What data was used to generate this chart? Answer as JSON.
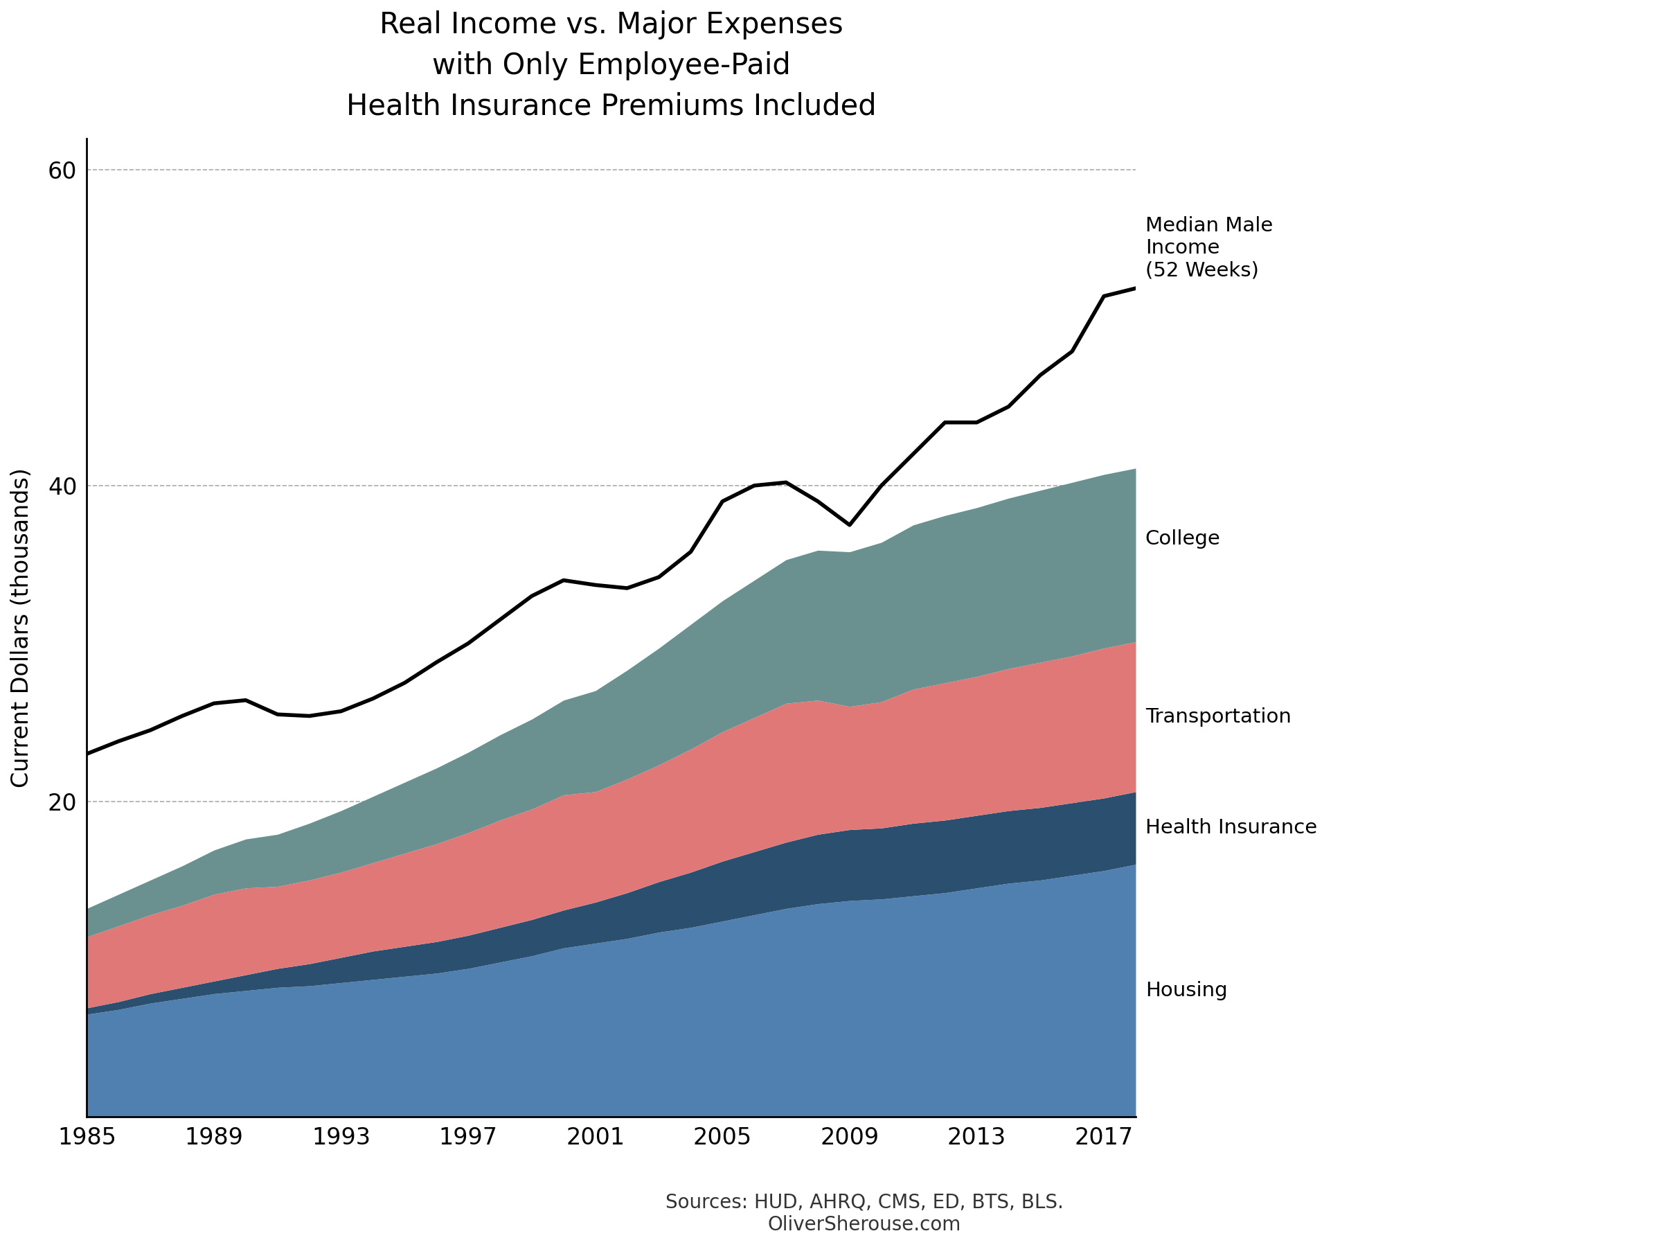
{
  "title": "Real Income vs. Major Expenses\nwith Only Employee-Paid\nHealth Insurance Premiums Included",
  "ylabel": "Current Dollars (thousands)",
  "sources_text": "Sources: HUD, AHRQ, CMS, ED, BTS, BLS.\nOliverSherouse.com",
  "years": [
    1985,
    1986,
    1987,
    1988,
    1989,
    1990,
    1991,
    1992,
    1993,
    1994,
    1995,
    1996,
    1997,
    1998,
    1999,
    2000,
    2001,
    2002,
    2003,
    2004,
    2005,
    2006,
    2007,
    2008,
    2009,
    2010,
    2011,
    2012,
    2013,
    2014,
    2015,
    2016,
    2017,
    2018
  ],
  "income": [
    23.0,
    23.8,
    24.5,
    25.4,
    26.2,
    26.4,
    25.5,
    25.4,
    25.7,
    26.5,
    27.5,
    28.8,
    30.0,
    31.5,
    33.0,
    34.0,
    33.7,
    33.5,
    34.2,
    35.8,
    39.0,
    40.0,
    40.2,
    39.0,
    37.5,
    40.0,
    42.0,
    44.0,
    44.0,
    45.0,
    47.0,
    48.5,
    52.0,
    52.5
  ],
  "housing": [
    6.5,
    6.8,
    7.2,
    7.5,
    7.8,
    8.0,
    8.2,
    8.3,
    8.5,
    8.7,
    8.9,
    9.1,
    9.4,
    9.8,
    10.2,
    10.7,
    11.0,
    11.3,
    11.7,
    12.0,
    12.4,
    12.8,
    13.2,
    13.5,
    13.7,
    13.8,
    14.0,
    14.2,
    14.5,
    14.8,
    15.0,
    15.3,
    15.6,
    16.0
  ],
  "health_insurance": [
    0.4,
    0.5,
    0.6,
    0.7,
    0.8,
    1.0,
    1.2,
    1.4,
    1.6,
    1.8,
    1.9,
    2.0,
    2.1,
    2.2,
    2.3,
    2.4,
    2.6,
    2.9,
    3.2,
    3.5,
    3.8,
    4.0,
    4.2,
    4.4,
    4.5,
    4.5,
    4.6,
    4.6,
    4.6,
    4.6,
    4.6,
    4.6,
    4.6,
    4.6
  ],
  "transportation": [
    4.5,
    4.8,
    5.0,
    5.2,
    5.5,
    5.5,
    5.2,
    5.3,
    5.4,
    5.6,
    5.9,
    6.2,
    6.5,
    6.8,
    7.0,
    7.3,
    7.0,
    7.2,
    7.4,
    7.8,
    8.2,
    8.5,
    8.8,
    8.5,
    7.8,
    8.0,
    8.5,
    8.7,
    8.8,
    9.0,
    9.2,
    9.3,
    9.5,
    9.5
  ],
  "college": [
    1.8,
    2.0,
    2.2,
    2.5,
    2.8,
    3.1,
    3.3,
    3.6,
    3.9,
    4.2,
    4.5,
    4.8,
    5.1,
    5.4,
    5.7,
    6.0,
    6.4,
    6.9,
    7.4,
    7.9,
    8.3,
    8.7,
    9.1,
    9.5,
    9.8,
    10.1,
    10.4,
    10.6,
    10.7,
    10.8,
    10.9,
    11.0,
    11.0,
    11.0
  ],
  "housing_color": "#5080B0",
  "health_insurance_color": "#2B4F6E",
  "transportation_color": "#E07878",
  "college_color": "#6A9090",
  "income_color": "#000000",
  "ylim_bottom": 0,
  "ylim_top": 62,
  "yticks": [
    20,
    40,
    60
  ],
  "xticks": [
    1985,
    1989,
    1993,
    1997,
    2001,
    2005,
    2009,
    2013,
    2017
  ],
  "label_income": "Median Male\nIncome\n(52 Weeks)",
  "label_college": "College",
  "label_transportation": "Transportation",
  "label_health_insurance": "Health Insurance",
  "label_housing": "Housing",
  "annotation_fontsize": 21
}
